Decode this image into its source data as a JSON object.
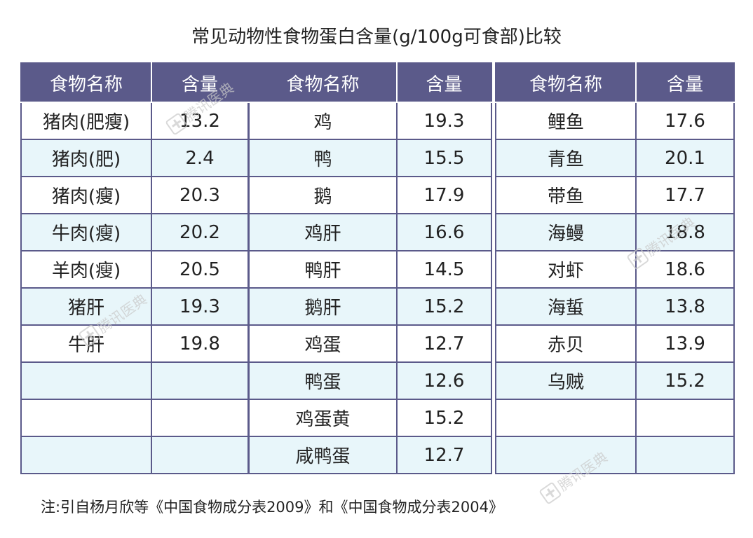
{
  "title": "常见动物性食物蛋白含量(g/100g可食部)比较",
  "headers": {
    "name": "食物名称",
    "content": "含量"
  },
  "table1": [
    {
      "name": "猪肉(肥瘦)",
      "value": "13.2"
    },
    {
      "name": "猪肉(肥)",
      "value": "2.4"
    },
    {
      "name": "猪肉(瘦)",
      "value": "20.3"
    },
    {
      "name": "牛肉(瘦)",
      "value": "20.2"
    },
    {
      "name": "羊肉(瘦)",
      "value": "20.5"
    },
    {
      "name": "猪肝",
      "value": "19.3"
    },
    {
      "name": "牛肝",
      "value": "19.8"
    },
    {
      "name": "",
      "value": ""
    },
    {
      "name": "",
      "value": ""
    },
    {
      "name": "",
      "value": ""
    }
  ],
  "table2": [
    {
      "name": "鸡",
      "value": "19.3"
    },
    {
      "name": "鸭",
      "value": "15.5"
    },
    {
      "name": "鹅",
      "value": "17.9"
    },
    {
      "name": "鸡肝",
      "value": "16.6"
    },
    {
      "name": "鸭肝",
      "value": "14.5"
    },
    {
      "name": "鹅肝",
      "value": "15.2"
    },
    {
      "name": "鸡蛋",
      "value": "12.7"
    },
    {
      "name": "鸭蛋",
      "value": "12.6"
    },
    {
      "name": "鸡蛋黄",
      "value": "15.2"
    },
    {
      "name": "咸鸭蛋",
      "value": "12.7"
    }
  ],
  "table3": [
    {
      "name": "鲤鱼",
      "value": "17.6"
    },
    {
      "name": "青鱼",
      "value": "20.1"
    },
    {
      "name": "带鱼",
      "value": "17.7"
    },
    {
      "name": "海鳗",
      "value": "18.8"
    },
    {
      "name": "对虾",
      "value": "18.6"
    },
    {
      "name": "海蜇",
      "value": "13.8"
    },
    {
      "name": "赤贝",
      "value": "13.9"
    },
    {
      "name": "乌贼",
      "value": "15.2"
    },
    {
      "name": "",
      "value": ""
    },
    {
      "name": "",
      "value": ""
    }
  ],
  "note": "注:引自杨月欣等《中国食物成分表2009》和《中国食物成分表2004》",
  "watermark": "腾讯医典",
  "colors": {
    "header": "#5b5a8a",
    "stripe": "#e8f6fa"
  }
}
